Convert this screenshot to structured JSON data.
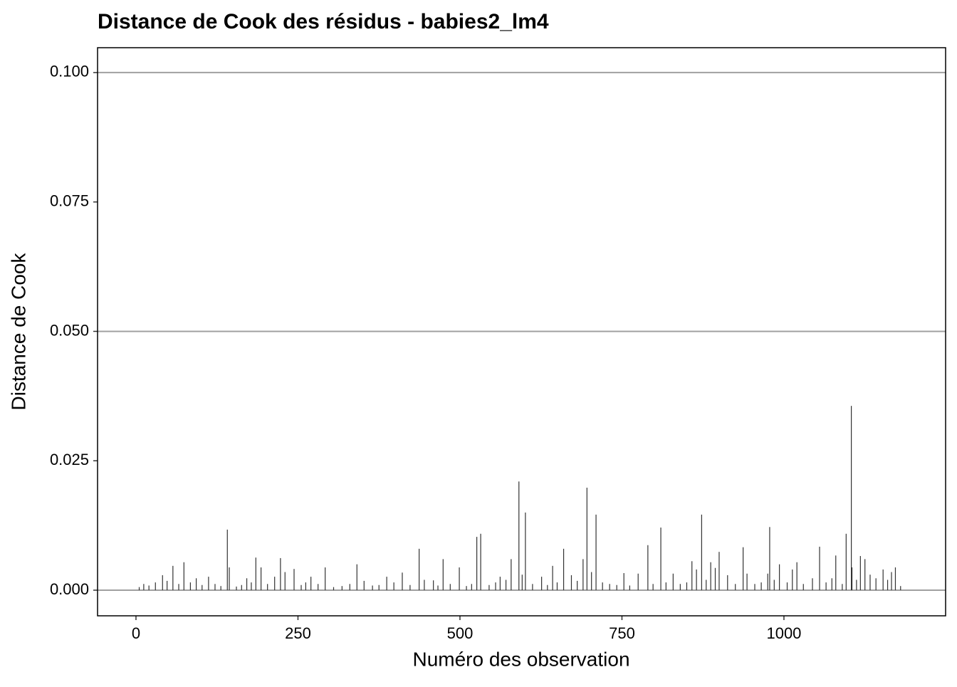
{
  "chart_data": {
    "type": "bar",
    "title": "Distance de Cook des résidus - babies2_lm4",
    "xlabel": "Numéro des observation",
    "ylabel": "Distance de Cook",
    "x": [
      5,
      12,
      20,
      30,
      41,
      48,
      57,
      66,
      74,
      84,
      93,
      102,
      112,
      122,
      131,
      141,
      144,
      155,
      163,
      171,
      178,
      185,
      193,
      203,
      214,
      223,
      230,
      244,
      255,
      262,
      270,
      281,
      292,
      305,
      318,
      330,
      341,
      352,
      365,
      375,
      387,
      398,
      411,
      423,
      437,
      445,
      459,
      466,
      474,
      485,
      499,
      510,
      518,
      526,
      532,
      545,
      555,
      562,
      571,
      579,
      591,
      596,
      601,
      612,
      626,
      635,
      643,
      650,
      660,
      672,
      681,
      690,
      696,
      703,
      710,
      720,
      731,
      742,
      753,
      762,
      775,
      790,
      798,
      810,
      818,
      829,
      840,
      850,
      858,
      865,
      873,
      880,
      887,
      894,
      900,
      913,
      925,
      937,
      943,
      955,
      965,
      975,
      978,
      985,
      993,
      1005,
      1013,
      1020,
      1030,
      1044,
      1055,
      1065,
      1074,
      1080,
      1090,
      1096,
      1104,
      1105,
      1112,
      1118,
      1125,
      1133,
      1142,
      1153,
      1160,
      1166,
      1172,
      1180
    ],
    "values": [
      0.0006,
      0.0012,
      0.0009,
      0.0015,
      0.0029,
      0.0018,
      0.0047,
      0.0012,
      0.0054,
      0.0015,
      0.0023,
      0.001,
      0.0026,
      0.0012,
      0.0008,
      0.0117,
      0.0044,
      0.0007,
      0.001,
      0.0023,
      0.0015,
      0.0063,
      0.0044,
      0.0012,
      0.0026,
      0.0062,
      0.0035,
      0.0041,
      0.001,
      0.0015,
      0.0026,
      0.0012,
      0.0044,
      0.0006,
      0.0008,
      0.0012,
      0.005,
      0.0018,
      0.0009,
      0.001,
      0.0026,
      0.0015,
      0.0034,
      0.001,
      0.008,
      0.002,
      0.0019,
      0.0009,
      0.006,
      0.0012,
      0.0044,
      0.0008,
      0.0012,
      0.0103,
      0.0109,
      0.001,
      0.0015,
      0.0026,
      0.002,
      0.006,
      0.021,
      0.003,
      0.015,
      0.0012,
      0.0026,
      0.001,
      0.0047,
      0.0015,
      0.008,
      0.0029,
      0.0018,
      0.006,
      0.0198,
      0.0035,
      0.0146,
      0.0015,
      0.0012,
      0.001,
      0.0033,
      0.0009,
      0.0032,
      0.0087,
      0.0012,
      0.0121,
      0.0015,
      0.0032,
      0.0012,
      0.0015,
      0.0056,
      0.004,
      0.0146,
      0.002,
      0.0054,
      0.0043,
      0.0074,
      0.0029,
      0.0012,
      0.0083,
      0.0032,
      0.0012,
      0.0015,
      0.0032,
      0.0122,
      0.002,
      0.005,
      0.0015,
      0.004,
      0.0054,
      0.0012,
      0.0023,
      0.0084,
      0.0015,
      0.0023,
      0.0067,
      0.0012,
      0.0109,
      0.0356,
      0.0044,
      0.002,
      0.0066,
      0.006,
      0.003,
      0.0023,
      0.004,
      0.002,
      0.0035,
      0.0044,
      0.0008
    ],
    "color": "#333333",
    "xlim": [
      -59.3,
      1249.5
    ],
    "xticks": [
      0,
      250,
      500,
      750,
      1000
    ],
    "ylim": [
      -0.00495,
      0.1048
    ],
    "yticks": [
      {
        "value": 0,
        "label": "0.000"
      },
      {
        "value": 0.025,
        "label": "0.025"
      },
      {
        "value": 0.05,
        "label": "0.050"
      },
      {
        "value": 0.075,
        "label": "0.075"
      },
      {
        "value": 0.1,
        "label": "0.100"
      }
    ],
    "hlines": [
      0,
      0.05,
      0.1
    ],
    "hline_color": "#a0a0a0"
  }
}
